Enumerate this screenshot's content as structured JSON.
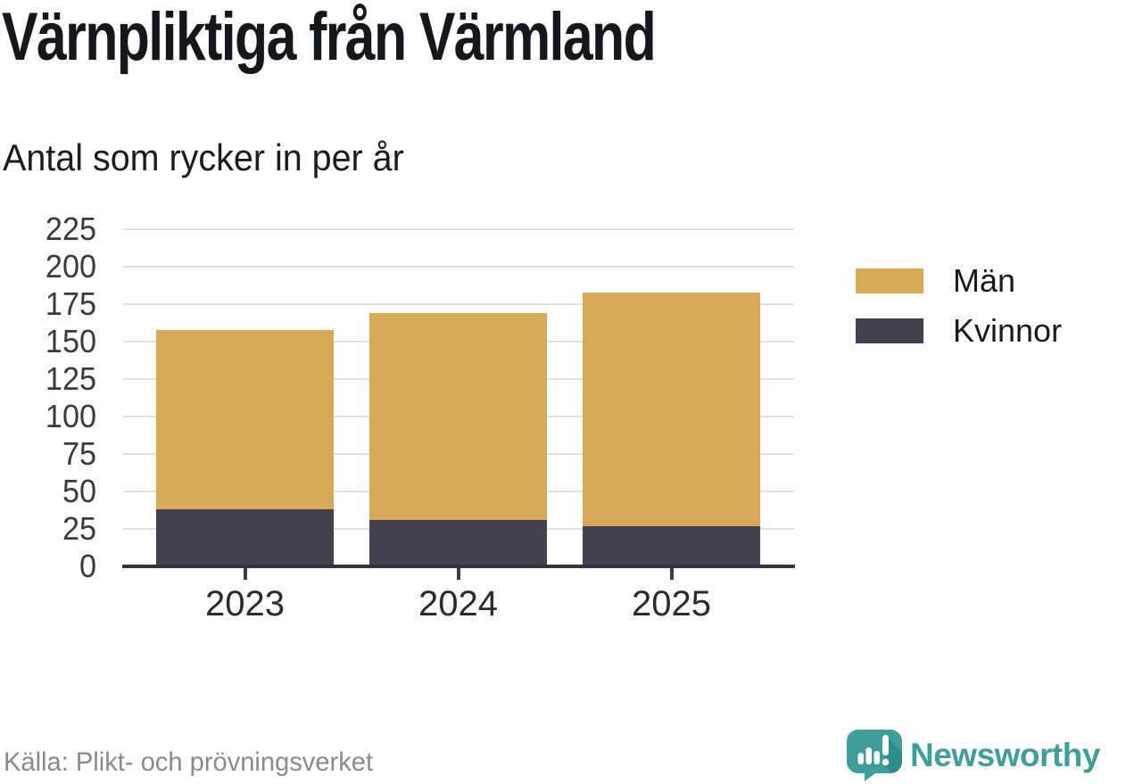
{
  "header": {
    "title": "Värnpliktiga från Värmland",
    "subtitle": "Antal som rycker in per år"
  },
  "chart_data": {
    "type": "bar",
    "stacked": true,
    "title": "Värnpliktiga från Värmland",
    "subtitle": "Antal som rycker in per år",
    "categories": [
      "2023",
      "2024",
      "2025"
    ],
    "series": [
      {
        "name": "Män",
        "color": "#d9a95b",
        "values": [
          120,
          138,
          156
        ]
      },
      {
        "name": "Kvinnor",
        "color": "#43414e",
        "values": [
          38,
          31,
          27
        ]
      }
    ],
    "stack_order_bottom_to_top": [
      "Kvinnor",
      "Män"
    ],
    "totals": [
      158,
      169,
      183
    ],
    "xlabel": "",
    "ylabel": "",
    "ylim": [
      0,
      225
    ],
    "yticks": [
      0,
      25,
      50,
      75,
      100,
      125,
      150,
      175,
      200,
      225
    ],
    "grid": true,
    "legend_position": "right"
  },
  "colors": {
    "grid": "#e0e0e0",
    "axis": "#35343e",
    "brand_teal": "#3f9e99"
  },
  "footer": {
    "source": "Källa: Plikt- och prövningsverket",
    "brand": "Newsworthy"
  }
}
